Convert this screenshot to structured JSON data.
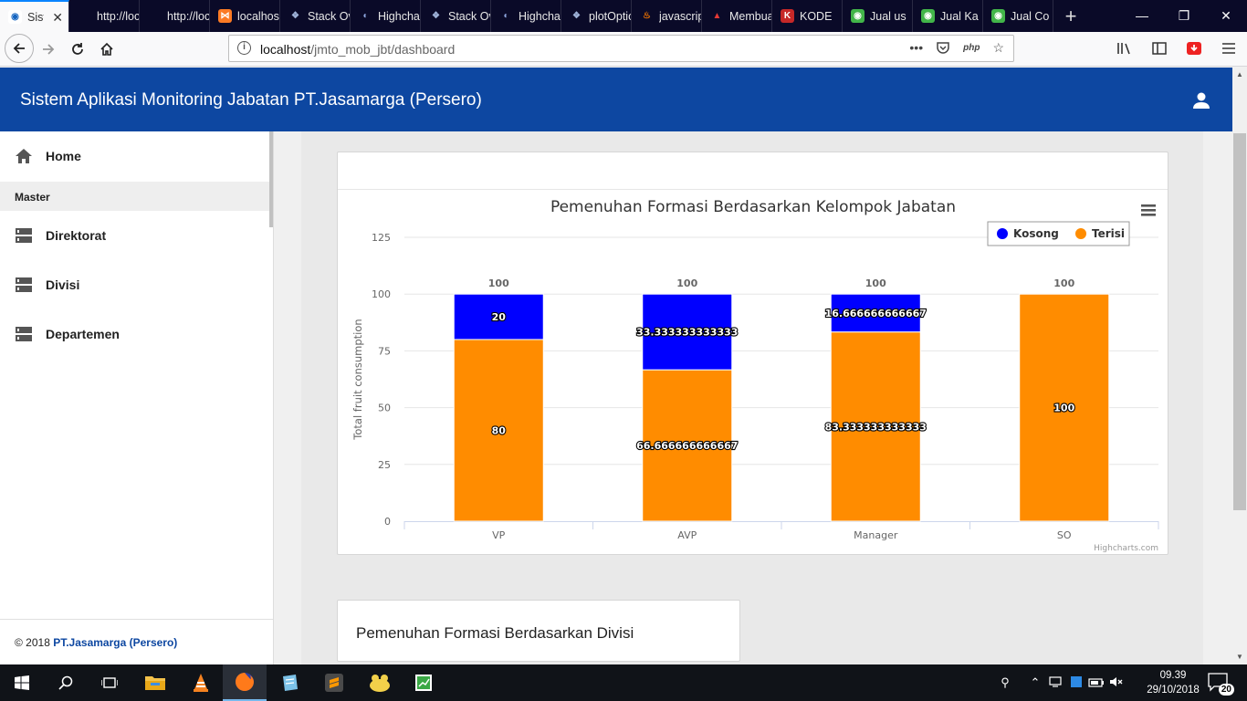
{
  "browser": {
    "tabs": [
      {
        "label": "Sistem",
        "icon": "chrome-icon",
        "active": true
      },
      {
        "label": "http://localhost",
        "icon": "blank-icon"
      },
      {
        "label": "http://localhost",
        "icon": "blank-icon"
      },
      {
        "label": "localhost",
        "icon": "xampp-icon"
      },
      {
        "label": "Stack Overflow",
        "icon": "stackoverflow-icon"
      },
      {
        "label": "Highcharts",
        "icon": "highcharts-icon"
      },
      {
        "label": "Stack Overflow",
        "icon": "stackoverflow-icon"
      },
      {
        "label": "Highcharts",
        "icon": "highcharts-icon"
      },
      {
        "label": "plotOptions",
        "icon": "plotly-icon"
      },
      {
        "label": "javascript",
        "icon": "java-icon"
      },
      {
        "label": "Membuat",
        "icon": "codepolitan-icon"
      },
      {
        "label": "KODE",
        "icon": "kode-icon"
      },
      {
        "label": "Jual us",
        "icon": "tokopedia-icon"
      },
      {
        "label": "Jual Ka",
        "icon": "tokopedia-icon"
      },
      {
        "label": "Jual Co",
        "icon": "tokopedia-icon"
      }
    ],
    "url_host": "localhost",
    "url_path": "/jmto_mob_jbt/dashboard"
  },
  "app": {
    "title": "Sistem Aplikasi Monitoring Jabatan PT.Jasamarga (Persero)"
  },
  "sidebar": {
    "home": "Home",
    "section": "Master",
    "items": [
      "Direktorat",
      "Divisi",
      "Departemen"
    ],
    "footer_prefix": "© 2018",
    "footer_brand": "PT.Jasamarga (Persero)"
  },
  "cards": {
    "second_title": "Pemenuhan Formasi Berdasarkan Divisi"
  },
  "chart_data": {
    "type": "bar",
    "stacked": true,
    "title": "Pemenuhan Formasi Berdasarkan Kelompok Jabatan",
    "xlabel": "",
    "ylabel": "Total fruit consumption",
    "categories": [
      "VP",
      "AVP",
      "Manager",
      "SO"
    ],
    "ylim": [
      0,
      125
    ],
    "yticks": [
      0,
      25,
      50,
      75,
      100,
      125
    ],
    "grid": true,
    "legend_position": "top-right",
    "series": [
      {
        "name": "Kosong",
        "color": "#0000ff",
        "values": [
          20,
          33.333333333333,
          16.666666666667,
          0
        ],
        "labels": [
          "20",
          "33.333333333333",
          "16.666666666667",
          ""
        ]
      },
      {
        "name": "Terisi",
        "color": "#ff8c00",
        "values": [
          80,
          66.666666666667,
          83.333333333333,
          100
        ],
        "labels": [
          "80",
          "66.666666666667",
          "83.333333333333",
          "100"
        ]
      }
    ],
    "totals": [
      "100",
      "100",
      "100",
      "100"
    ],
    "credits": "Highcharts.com"
  },
  "taskbar": {
    "time": "09.39",
    "date": "29/10/2018",
    "notifications": "20"
  }
}
